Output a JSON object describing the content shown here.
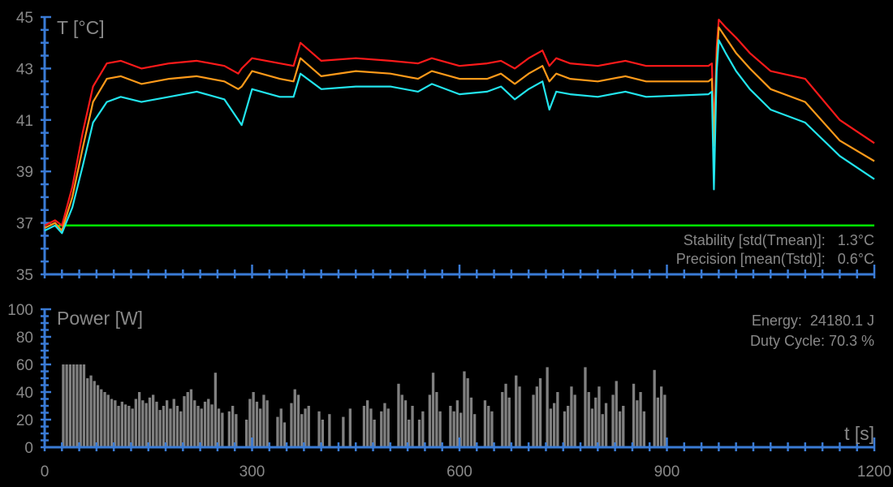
{
  "chart_data": [
    {
      "type": "line",
      "ylabel": "T [°C]",
      "ylim": [
        35,
        45
      ],
      "xlim": [
        0,
        1200
      ],
      "y_ticks": [
        35,
        37,
        39,
        41,
        43,
        45
      ],
      "grid": false,
      "annotations": {
        "stability": "Stability [std(Tmean)]:   1.3°C",
        "precision": "Precision [mean(Tstd)]:   0.6°C"
      },
      "reference_line": {
        "y": 36.9,
        "color": "#00ee00"
      },
      "series": [
        {
          "color": "#ff1a1a",
          "x": [
            0,
            15,
            25,
            40,
            55,
            70,
            90,
            110,
            140,
            180,
            220,
            260,
            280,
            285,
            300,
            340,
            360,
            370,
            400,
            450,
            500,
            540,
            560,
            600,
            640,
            660,
            680,
            700,
            720,
            730,
            740,
            760,
            800,
            840,
            870,
            960,
            965,
            968,
            972,
            975,
            985,
            1000,
            1020,
            1050,
            1100,
            1150,
            1200
          ],
          "y": [
            36.9,
            37.1,
            36.9,
            38.4,
            40.5,
            42.3,
            43.2,
            43.3,
            43.0,
            43.2,
            43.3,
            43.1,
            42.8,
            43.0,
            43.4,
            43.2,
            43.1,
            44.0,
            43.3,
            43.4,
            43.3,
            43.2,
            43.4,
            43.1,
            43.2,
            43.3,
            43.0,
            43.4,
            43.7,
            43.1,
            43.4,
            43.2,
            43.1,
            43.3,
            43.1,
            43.1,
            43.2,
            40.5,
            43.8,
            44.9,
            44.6,
            44.2,
            43.6,
            42.9,
            42.6,
            41.0,
            40.1
          ]
        },
        {
          "color": "#ff9a1a",
          "x": [
            0,
            15,
            25,
            40,
            55,
            70,
            90,
            110,
            140,
            180,
            220,
            260,
            280,
            285,
            300,
            340,
            360,
            370,
            400,
            450,
            500,
            540,
            560,
            600,
            640,
            660,
            680,
            700,
            720,
            730,
            740,
            760,
            800,
            840,
            870,
            960,
            965,
            968,
            972,
            975,
            985,
            1000,
            1020,
            1050,
            1100,
            1150,
            1200
          ],
          "y": [
            36.8,
            37.0,
            36.7,
            38.0,
            39.9,
            41.7,
            42.6,
            42.7,
            42.4,
            42.6,
            42.7,
            42.5,
            42.2,
            42.3,
            42.9,
            42.6,
            42.5,
            43.4,
            42.7,
            42.9,
            42.8,
            42.6,
            42.9,
            42.6,
            42.6,
            42.8,
            42.4,
            42.8,
            43.1,
            42.5,
            42.8,
            42.6,
            42.5,
            42.7,
            42.5,
            42.5,
            42.6,
            40.0,
            43.3,
            44.6,
            44.2,
            43.6,
            43.0,
            42.2,
            41.7,
            40.2,
            39.4
          ]
        },
        {
          "color": "#22e5ee",
          "x": [
            0,
            15,
            25,
            40,
            55,
            70,
            90,
            110,
            140,
            180,
            220,
            260,
            280,
            285,
            300,
            340,
            360,
            370,
            400,
            450,
            500,
            540,
            560,
            600,
            640,
            660,
            680,
            700,
            720,
            730,
            740,
            760,
            800,
            840,
            870,
            960,
            965,
            968,
            972,
            975,
            985,
            1000,
            1020,
            1050,
            1100,
            1150,
            1200
          ],
          "y": [
            36.7,
            36.9,
            36.6,
            37.6,
            39.2,
            40.9,
            41.7,
            41.9,
            41.7,
            41.9,
            42.1,
            41.8,
            41.0,
            40.8,
            42.2,
            41.9,
            41.9,
            42.8,
            42.2,
            42.3,
            42.3,
            42.1,
            42.4,
            42.0,
            42.1,
            42.3,
            41.8,
            42.2,
            42.5,
            41.4,
            42.1,
            42.0,
            41.9,
            42.1,
            41.9,
            42.0,
            42.1,
            38.3,
            42.9,
            44.1,
            43.6,
            42.9,
            42.2,
            41.4,
            40.9,
            39.6,
            38.7
          ]
        }
      ]
    },
    {
      "type": "bar",
      "ylabel": "Power [W]",
      "xlabel": "t [s]",
      "ylim": [
        0,
        100
      ],
      "xlim": [
        0,
        1200
      ],
      "y_ticks": [
        0,
        20,
        40,
        60,
        80,
        100
      ],
      "x_ticks": [
        0,
        300,
        600,
        900,
        1200
      ],
      "bar_color": "#808080",
      "grid": false,
      "annotations": {
        "energy": "Energy:  24180.1 J",
        "duty_cycle": "Duty Cycle: 70.3 %"
      },
      "x": [
        25,
        30,
        35,
        40,
        45,
        50,
        55,
        60,
        65,
        70,
        75,
        80,
        85,
        90,
        95,
        100,
        105,
        110,
        115,
        120,
        125,
        130,
        135,
        140,
        145,
        150,
        155,
        160,
        165,
        170,
        175,
        180,
        185,
        190,
        195,
        200,
        205,
        210,
        215,
        220,
        225,
        230,
        235,
        240,
        245,
        250,
        255,
        260,
        265,
        270,
        275,
        280,
        285,
        290,
        295,
        300,
        305,
        310,
        315,
        320,
        325,
        330,
        335,
        340,
        345,
        350,
        355,
        360,
        365,
        370,
        375,
        380,
        385,
        390,
        395,
        400,
        405,
        410,
        415,
        420,
        425,
        430,
        435,
        440,
        445,
        450,
        455,
        460,
        465,
        470,
        475,
        480,
        485,
        490,
        495,
        500,
        505,
        510,
        515,
        520,
        525,
        530,
        535,
        540,
        545,
        550,
        555,
        560,
        565,
        570,
        575,
        580,
        585,
        590,
        595,
        600,
        605,
        610,
        615,
        620,
        625,
        630,
        635,
        640,
        645,
        650,
        655,
        660,
        665,
        670,
        675,
        680,
        685,
        690,
        695,
        700,
        705,
        710,
        715,
        720,
        725,
        730,
        735,
        740,
        745,
        750,
        755,
        760,
        765,
        770,
        775,
        780,
        785,
        790,
        795,
        800,
        805,
        810,
        815,
        820,
        825,
        830,
        835,
        840,
        845,
        850,
        855,
        860,
        865,
        870,
        875,
        880,
        885,
        890,
        895,
        900,
        905,
        910,
        915,
        920,
        925,
        930,
        935,
        940,
        945,
        950,
        955,
        960,
        965,
        970,
        975
      ],
      "values": [
        60,
        60,
        60,
        60,
        60,
        60,
        60,
        50,
        52,
        48,
        45,
        42,
        40,
        38,
        35,
        34,
        30,
        33,
        31,
        30,
        28,
        35,
        40,
        34,
        32,
        36,
        38,
        33,
        27,
        30,
        34,
        28,
        35,
        30,
        26,
        37,
        40,
        42,
        34,
        30,
        28,
        33,
        35,
        31,
        54,
        28,
        25,
        0,
        26,
        30,
        24,
        0,
        0,
        20,
        35,
        40,
        33,
        28,
        38,
        34,
        0,
        0,
        22,
        28,
        18,
        0,
        32,
        42,
        38,
        24,
        28,
        30,
        0,
        0,
        26,
        20,
        0,
        24,
        0,
        0,
        0,
        22,
        0,
        28,
        0,
        0,
        0,
        30,
        34,
        28,
        20,
        0,
        26,
        32,
        28,
        0,
        0,
        46,
        38,
        34,
        20,
        30,
        0,
        20,
        26,
        0,
        38,
        54,
        40,
        26,
        0,
        0,
        30,
        26,
        34,
        25,
        55,
        50,
        36,
        24,
        0,
        0,
        34,
        30,
        26,
        0,
        0,
        40,
        46,
        36,
        0,
        52,
        44,
        0,
        0,
        0,
        38,
        44,
        50,
        0,
        58,
        28,
        32,
        40,
        0,
        26,
        30,
        44,
        38,
        0,
        0,
        58,
        40,
        28,
        36,
        44,
        24,
        32,
        0,
        38,
        48,
        26,
        30,
        0,
        0,
        46,
        34,
        40,
        26,
        0,
        0,
        56,
        36,
        44,
        38,
        0,
        0,
        0,
        0,
        0,
        0,
        0,
        0,
        0,
        0,
        0,
        0,
        0,
        0,
        0,
        0
      ]
    }
  ]
}
